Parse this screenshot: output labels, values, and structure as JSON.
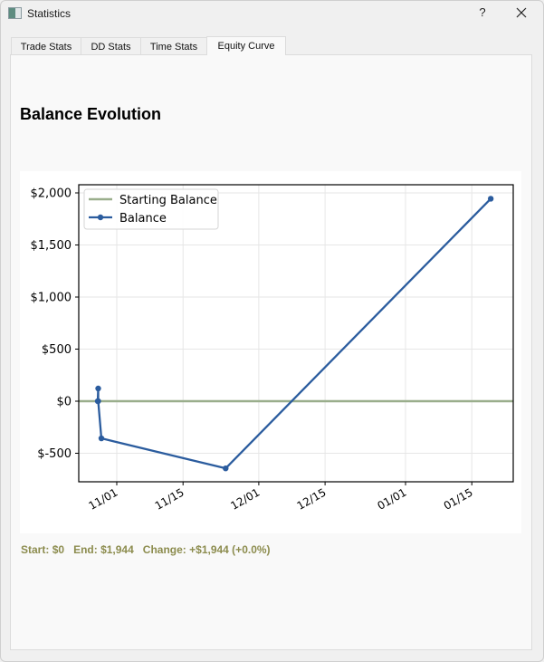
{
  "window": {
    "title": "Statistics",
    "help_label": "?",
    "icons": {
      "app": "app-icon",
      "help": "help-icon",
      "close": "close-icon"
    }
  },
  "tabs": [
    {
      "label": "Trade Stats",
      "active": false
    },
    {
      "label": "DD Stats",
      "active": false
    },
    {
      "label": "Time Stats",
      "active": false
    },
    {
      "label": "Equity Curve",
      "active": true
    }
  ],
  "main": {
    "heading": "Balance Evolution",
    "summary": {
      "start_label": "Start:",
      "start_value": "$0",
      "end_label": "End:",
      "end_value": "$1,944",
      "change_label": "Change:",
      "change_value": "+$1,944 (+0.0%)",
      "color": "#8c8c4e"
    }
  },
  "chart_data": {
    "type": "line",
    "title": "",
    "xlabel": "",
    "ylabel": "",
    "x_tick_labels": [
      "11/01",
      "11/15",
      "12/01",
      "12/15",
      "01/01",
      "01/15"
    ],
    "y_tick_labels": [
      "$-500",
      "$0",
      "$500",
      "$1,000",
      "$1,500",
      "$2,000"
    ],
    "y_ticks": [
      -500,
      0,
      500,
      1000,
      1500,
      2000
    ],
    "ylim": [
      -760,
      2070
    ],
    "grid": true,
    "legend": {
      "position": "upper left",
      "entries": [
        "Starting Balance",
        "Balance"
      ]
    },
    "series": [
      {
        "name": "Starting Balance",
        "color": "#9aae8c",
        "style": "line",
        "x": [
          "10/27",
          "01/21"
        ],
        "values": [
          0,
          0
        ]
      },
      {
        "name": "Balance",
        "color": "#2b5c9e",
        "style": "line-marker",
        "x": [
          "10/28",
          "10/28",
          "10/28",
          "10/29",
          "11/24",
          "01/19"
        ],
        "values": [
          0,
          122,
          0,
          -357,
          -645,
          1944
        ]
      }
    ]
  }
}
